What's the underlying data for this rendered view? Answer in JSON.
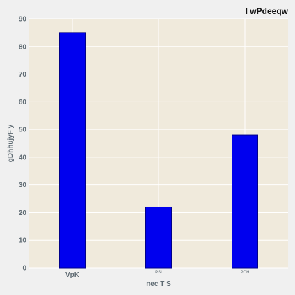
{
  "chart_data": {
    "type": "bar",
    "title": "I wPdeeqw",
    "xlabel": "nec T S",
    "ylabel": "gDhhujyF y",
    "categories": [
      "VpK",
      "PSI",
      "POH"
    ],
    "values": [
      85,
      22,
      48
    ],
    "ylim": [
      0,
      90
    ],
    "yticks": [
      0,
      10,
      20,
      30,
      40,
      50,
      60,
      70,
      80,
      90
    ],
    "grid": true,
    "legend": "none",
    "colors": {
      "bar": "#0000ee",
      "bar_edge": "#00008b",
      "plot_background": "#f0eadc",
      "figure_background": "#f0f0f0",
      "grid": "#ffffff"
    }
  }
}
